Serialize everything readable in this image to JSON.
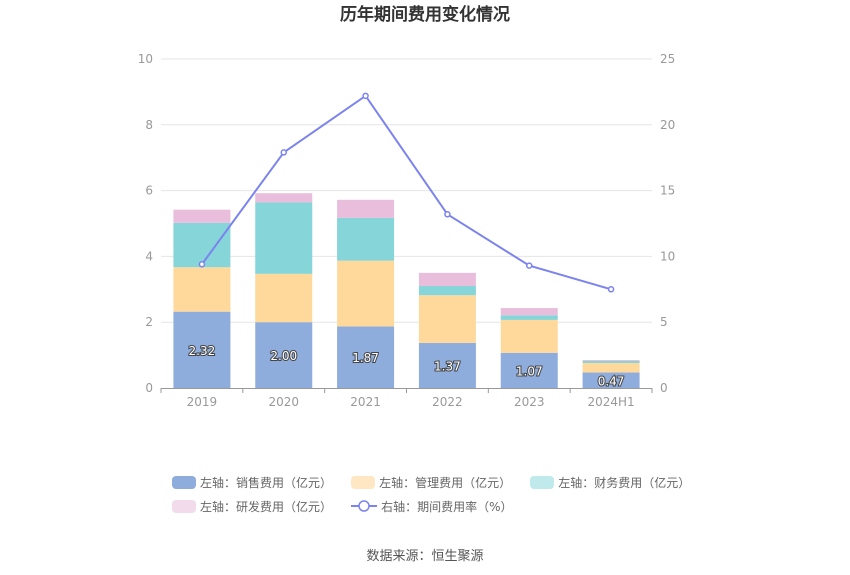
{
  "chart_data": {
    "type": "bar",
    "title": "历年期间费用变化情况",
    "categories": [
      "2019",
      "2020",
      "2021",
      "2022",
      "2023",
      "2024H1"
    ],
    "y_left": {
      "min": 0,
      "max": 10,
      "ticks": [
        "0",
        "2",
        "4",
        "6",
        "8",
        "10"
      ]
    },
    "y_right": {
      "min": 0,
      "max": 25,
      "ticks": [
        "0",
        "5",
        "10",
        "15",
        "20",
        "25"
      ]
    },
    "stacked": true,
    "grid": true,
    "legend_position": "bottom",
    "series": [
      {
        "name": "左轴：销售费用（亿元）",
        "axis": "left",
        "color": "#8eaddc",
        "values": [
          2.32,
          2.0,
          1.87,
          1.37,
          1.07,
          0.47
        ],
        "labels": [
          "2.32",
          "2.00",
          "1.87",
          "1.37",
          "1.07",
          "0.47"
        ]
      },
      {
        "name": "左轴：管理费用（亿元）",
        "axis": "left",
        "color": "#fed99b",
        "values": [
          1.35,
          1.47,
          2.0,
          1.45,
          1.0,
          0.29
        ]
      },
      {
        "name": "左轴：财务费用（亿元）",
        "axis": "left",
        "color": "#86d5d8",
        "values": [
          1.35,
          2.17,
          1.3,
          0.28,
          0.14,
          0.06
        ]
      },
      {
        "name": "左轴：研发费用（亿元）",
        "axis": "left",
        "color": "#e8bedc",
        "values": [
          0.4,
          0.28,
          0.55,
          0.4,
          0.22,
          0.03
        ]
      },
      {
        "name": "右轴：期间费用率（%）",
        "axis": "right",
        "type": "line",
        "color": "#7b83ee",
        "values": [
          9.4,
          17.9,
          22.2,
          13.2,
          9.3,
          7.5
        ]
      }
    ]
  },
  "source": "数据来源：恒生聚源"
}
